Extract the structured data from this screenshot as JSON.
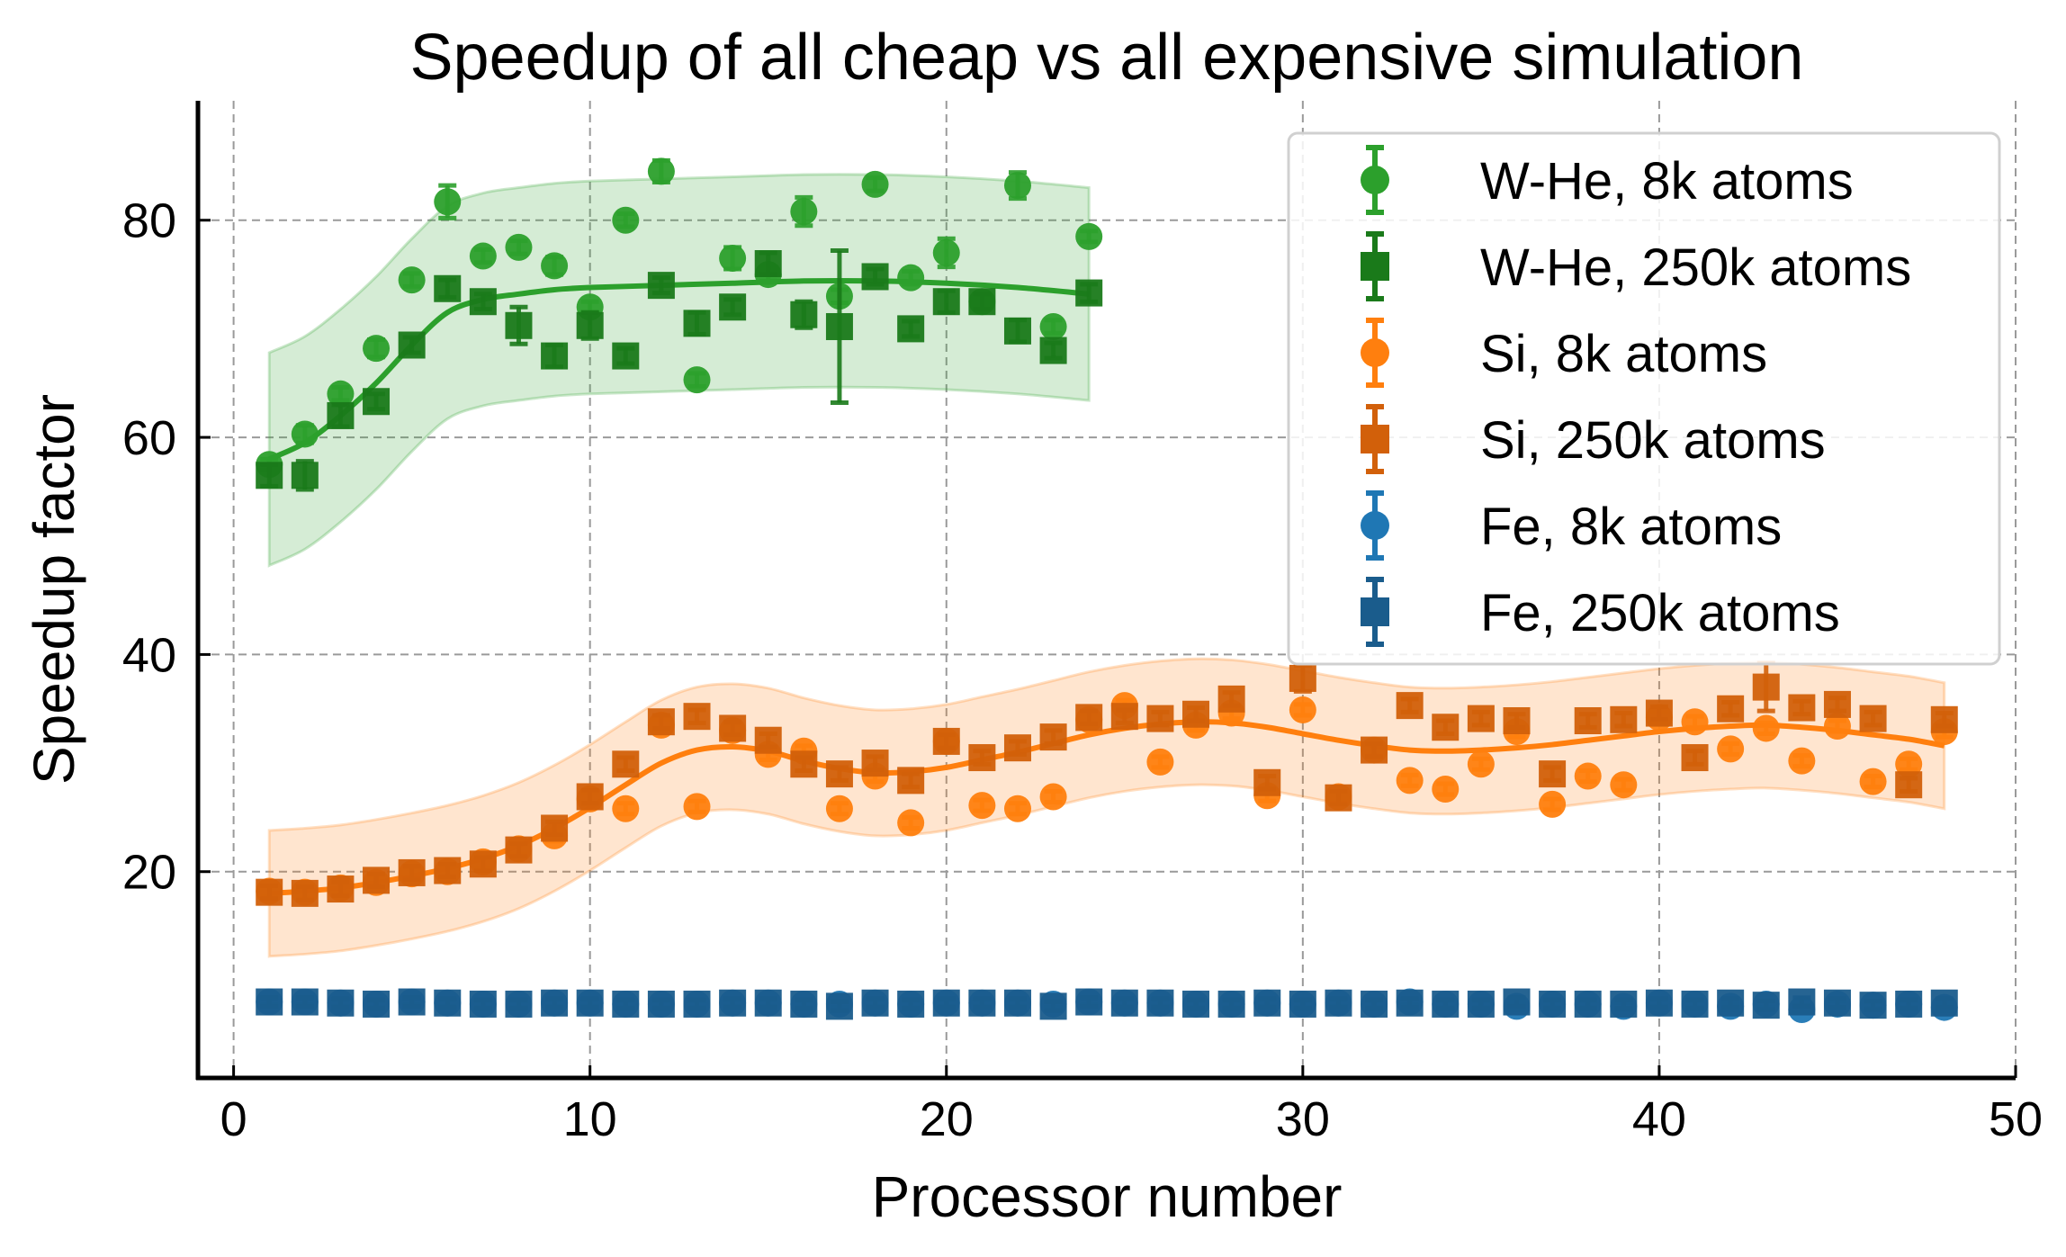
{
  "chart_data": {
    "type": "scatter",
    "title": "Speedup of all cheap vs all expensive simulation",
    "xlabel": "Processor number",
    "ylabel": "Speedup factor",
    "xlim": [
      -1,
      50
    ],
    "ylim": [
      1,
      91
    ],
    "xticks": [
      0,
      10,
      20,
      30,
      40,
      50
    ],
    "yticks": [
      20,
      40,
      60,
      80
    ],
    "grid": true,
    "legend_position": "top-right",
    "series": [
      {
        "name": "W-He, 8k atoms",
        "marker": "circle",
        "color": "#2ca02c",
        "x": [
          1,
          2,
          3,
          4,
          5,
          6,
          7,
          8,
          9,
          10,
          11,
          12,
          13,
          14,
          15,
          16,
          17,
          18,
          19,
          20,
          21,
          22,
          23,
          24
        ],
        "y": [
          57.5,
          60.3,
          64,
          68.2,
          74.5,
          81.7,
          76.7,
          77.5,
          75.8,
          72,
          80,
          84.5,
          65.3,
          76.5,
          75,
          80.8,
          73,
          83.3,
          74.7,
          77,
          72.5,
          83.2,
          70.2,
          78.5
        ],
        "yerr": [
          0.5,
          0.8,
          0.6,
          0.8,
          0.6,
          1.5,
          0.6,
          0.6,
          0.8,
          0.5,
          0.6,
          1.0,
          0.6,
          1.0,
          0.6,
          1.3,
          0.6,
          0.6,
          0.6,
          1.3,
          0.6,
          1.2,
          0.6,
          0.5
        ]
      },
      {
        "name": "W-He, 250k atoms",
        "marker": "square",
        "color": "#1a7a1a",
        "x": [
          1,
          2,
          3,
          4,
          5,
          6,
          7,
          8,
          9,
          10,
          11,
          12,
          13,
          14,
          15,
          16,
          17,
          18,
          19,
          20,
          21,
          22,
          23,
          24
        ],
        "y": [
          56.5,
          56.5,
          62,
          63.3,
          68.5,
          73.7,
          72.5,
          70.3,
          67.5,
          70.3,
          67.5,
          74,
          70.5,
          72,
          76,
          71.3,
          70.2,
          74.8,
          70,
          72.5,
          72.5,
          69.8,
          68,
          73.3
        ],
        "yerr": [
          1.0,
          1.3,
          1.0,
          0.7,
          0.7,
          0.8,
          0.7,
          1.7,
          1.0,
          1.2,
          0.7,
          0.7,
          1.0,
          0.7,
          1.0,
          1.2,
          7.0,
          0.7,
          0.7,
          1.0,
          0.7,
          1.0,
          0.7,
          0.8
        ]
      },
      {
        "name": "Si, 8k atoms",
        "marker": "circle",
        "color": "#ff7f0e",
        "x": [
          1,
          2,
          3,
          4,
          5,
          6,
          7,
          8,
          9,
          10,
          11,
          12,
          13,
          14,
          15,
          16,
          17,
          18,
          19,
          20,
          21,
          22,
          23,
          24,
          25,
          26,
          27,
          28,
          29,
          30,
          31,
          32,
          33,
          34,
          35,
          36,
          37,
          38,
          39,
          40,
          41,
          42,
          43,
          44,
          45,
          46,
          47,
          48
        ],
        "y": [
          18.2,
          18.1,
          18.5,
          19,
          19.8,
          20,
          20.9,
          22.1,
          23.3,
          26.7,
          25.8,
          33.5,
          26,
          33,
          30.8,
          31.1,
          25.8,
          28.8,
          24.5,
          32,
          26.1,
          25.8,
          26.9,
          34,
          35.3,
          30.1,
          33.5,
          34.6,
          27,
          34.9,
          26.9,
          31.2,
          28.4,
          27.6,
          29.9,
          32.9,
          26.2,
          28.8,
          28,
          34.2,
          33.8,
          31.3,
          33.2,
          30.2,
          33.4,
          28.3,
          29.9,
          32.9
        ],
        "yerr": [
          0.5,
          0.5,
          0.5,
          0.5,
          0.5,
          0.5,
          0.5,
          0.5,
          0.5,
          0.5,
          0.5,
          0.5,
          0.5,
          0.5,
          0.5,
          0.5,
          0.5,
          0.5,
          0.5,
          0.5,
          0.5,
          0.5,
          0.5,
          0.5,
          0.5,
          0.5,
          0.5,
          0.5,
          0.5,
          0.5,
          0.5,
          0.5,
          0.5,
          0.5,
          0.5,
          0.5,
          0.5,
          0.5,
          0.5,
          0.5,
          0.5,
          0.5,
          0.5,
          0.5,
          0.5,
          0.5,
          0.5,
          0.5
        ]
      },
      {
        "name": "Si, 250k atoms",
        "marker": "square",
        "color": "#d2600a",
        "x": [
          1,
          2,
          3,
          4,
          5,
          6,
          7,
          8,
          9,
          10,
          11,
          12,
          13,
          14,
          15,
          16,
          17,
          18,
          19,
          20,
          21,
          22,
          23,
          24,
          25,
          26,
          27,
          28,
          29,
          30,
          31,
          32,
          33,
          34,
          35,
          36,
          37,
          38,
          39,
          40,
          41,
          42,
          43,
          44,
          45,
          46,
          47,
          48
        ],
        "y": [
          18.1,
          18,
          18.4,
          19.2,
          19.9,
          20.1,
          20.7,
          22,
          24,
          26.9,
          29.9,
          33.8,
          34.3,
          33.2,
          32.1,
          29.9,
          29,
          30,
          28.4,
          32,
          30.5,
          31.4,
          32.4,
          34.2,
          34.3,
          34.1,
          34.5,
          35.9,
          28.2,
          37.8,
          26.8,
          31.2,
          35.3,
          33.3,
          34.1,
          33.9,
          29,
          33.9,
          34,
          34.6,
          30.5,
          35,
          37,
          35.1,
          35.4,
          34.1,
          28,
          34
        ],
        "yerr": [
          0.6,
          0.6,
          0.6,
          0.6,
          0.6,
          0.6,
          0.6,
          0.6,
          0.6,
          0.6,
          0.6,
          0.6,
          0.6,
          0.6,
          0.6,
          0.6,
          0.6,
          0.6,
          0.6,
          0.6,
          0.6,
          0.6,
          0.6,
          0.6,
          0.6,
          0.6,
          0.6,
          0.6,
          0.6,
          1.2,
          0.6,
          0.6,
          0.6,
          0.6,
          0.6,
          0.6,
          0.6,
          0.6,
          0.6,
          0.6,
          0.6,
          0.6,
          2.2,
          0.6,
          0.6,
          0.6,
          0.6,
          0.6
        ]
      },
      {
        "name": "Fe, 8k atoms",
        "marker": "circle",
        "color": "#1f77b4",
        "x": [
          1,
          2,
          3,
          4,
          5,
          6,
          7,
          8,
          9,
          10,
          11,
          12,
          13,
          14,
          15,
          16,
          17,
          18,
          19,
          20,
          21,
          22,
          23,
          24,
          25,
          26,
          27,
          28,
          29,
          30,
          31,
          32,
          33,
          34,
          35,
          36,
          37,
          38,
          39,
          40,
          41,
          42,
          43,
          44,
          45,
          46,
          47,
          48
        ],
        "y": [
          8,
          8,
          7.9,
          7.8,
          8,
          7.9,
          7.8,
          7.8,
          7.9,
          7.9,
          7.8,
          7.8,
          7.8,
          7.9,
          7.9,
          7.8,
          7.8,
          7.9,
          7.8,
          7.9,
          7.9,
          7.9,
          7.8,
          8,
          7.9,
          7.9,
          7.8,
          7.8,
          7.9,
          7.8,
          7.9,
          7.8,
          8,
          7.8,
          7.8,
          7.6,
          7.8,
          7.8,
          7.6,
          7.9,
          7.8,
          7.6,
          7.8,
          7.3,
          7.8,
          7.7,
          7.8,
          7.5
        ],
        "yerr": [
          0.3,
          0.3,
          0.3,
          0.3,
          0.3,
          0.3,
          0.3,
          0.3,
          0.3,
          0.3,
          0.3,
          0.3,
          0.3,
          0.3,
          0.3,
          0.3,
          0.3,
          0.3,
          0.3,
          0.3,
          0.3,
          0.3,
          0.3,
          0.3,
          0.3,
          0.3,
          0.3,
          0.3,
          0.3,
          0.3,
          0.3,
          0.3,
          0.3,
          0.3,
          0.3,
          0.3,
          0.3,
          0.3,
          0.3,
          0.3,
          0.3,
          0.3,
          0.3,
          0.3,
          0.3,
          0.3,
          0.3,
          0.3
        ]
      },
      {
        "name": "Fe, 250k atoms",
        "marker": "square",
        "color": "#1a5c8c",
        "x": [
          1,
          2,
          3,
          4,
          5,
          6,
          7,
          8,
          9,
          10,
          11,
          12,
          13,
          14,
          15,
          16,
          17,
          18,
          19,
          20,
          21,
          22,
          23,
          24,
          25,
          26,
          27,
          28,
          29,
          30,
          31,
          32,
          33,
          34,
          35,
          36,
          37,
          38,
          39,
          40,
          41,
          42,
          43,
          44,
          45,
          46,
          47,
          48
        ],
        "y": [
          8,
          8,
          7.9,
          7.8,
          8,
          7.9,
          7.8,
          7.8,
          7.9,
          7.9,
          7.8,
          7.8,
          7.8,
          7.9,
          7.9,
          7.8,
          7.6,
          7.9,
          7.8,
          7.9,
          7.9,
          7.9,
          7.6,
          8,
          7.9,
          7.9,
          7.8,
          7.8,
          7.9,
          7.8,
          7.9,
          7.8,
          7.9,
          7.8,
          7.8,
          8,
          7.8,
          7.8,
          7.8,
          7.9,
          7.8,
          7.9,
          7.7,
          8,
          7.9,
          7.7,
          7.8,
          7.9
        ],
        "yerr": [
          0.4,
          0.4,
          0.4,
          0.4,
          0.4,
          0.4,
          0.4,
          0.4,
          0.4,
          0.4,
          0.4,
          0.4,
          0.4,
          0.4,
          0.4,
          0.4,
          0.4,
          0.4,
          0.4,
          0.4,
          0.4,
          0.4,
          0.4,
          0.4,
          0.4,
          0.4,
          0.4,
          0.4,
          0.4,
          0.4,
          0.4,
          0.4,
          0.4,
          0.4,
          0.4,
          0.4,
          0.4,
          0.4,
          0.4,
          0.4,
          0.4,
          0.4,
          0.4,
          0.4,
          0.4,
          0.4,
          0.4,
          0.4
        ]
      }
    ],
    "fits": [
      {
        "name": "W-He fit",
        "color": "#2ca02c",
        "x": [
          1,
          2,
          3,
          4,
          5,
          6,
          7,
          8,
          9,
          10,
          12,
          14,
          16,
          18,
          20,
          22,
          24
        ],
        "y": [
          58,
          59.5,
          62,
          65,
          68.5,
          71.5,
          72.7,
          73.2,
          73.6,
          73.8,
          74,
          74.2,
          74.4,
          74.4,
          74.2,
          73.8,
          73.2
        ],
        "band": 9.8
      },
      {
        "name": "Si fit",
        "color": "#ff7f0e",
        "x": [
          1,
          2,
          3,
          4,
          5,
          6,
          7,
          8,
          9,
          10,
          11,
          12,
          13,
          14,
          15,
          16,
          17,
          18,
          19,
          20,
          21,
          22,
          23,
          24,
          25,
          26,
          27,
          28,
          29,
          30,
          31,
          32,
          33,
          34,
          35,
          36,
          37,
          38,
          39,
          40,
          41,
          42,
          43,
          44,
          45,
          46,
          47,
          48
        ],
        "y": [
          18,
          18.2,
          18.5,
          19,
          19.6,
          20.3,
          21.2,
          22.4,
          24,
          25.9,
          28,
          30,
          31.2,
          31.5,
          31.1,
          30.2,
          29.5,
          29.1,
          29.2,
          29.6,
          30.3,
          31,
          31.8,
          32.6,
          33.2,
          33.6,
          33.8,
          33.7,
          33.3,
          32.7,
          32.1,
          31.6,
          31.2,
          31.1,
          31.2,
          31.4,
          31.7,
          32.1,
          32.5,
          32.9,
          33.2,
          33.4,
          33.5,
          33.3,
          33,
          32.6,
          32.2,
          31.6
        ],
        "band": 5.8
      }
    ]
  }
}
